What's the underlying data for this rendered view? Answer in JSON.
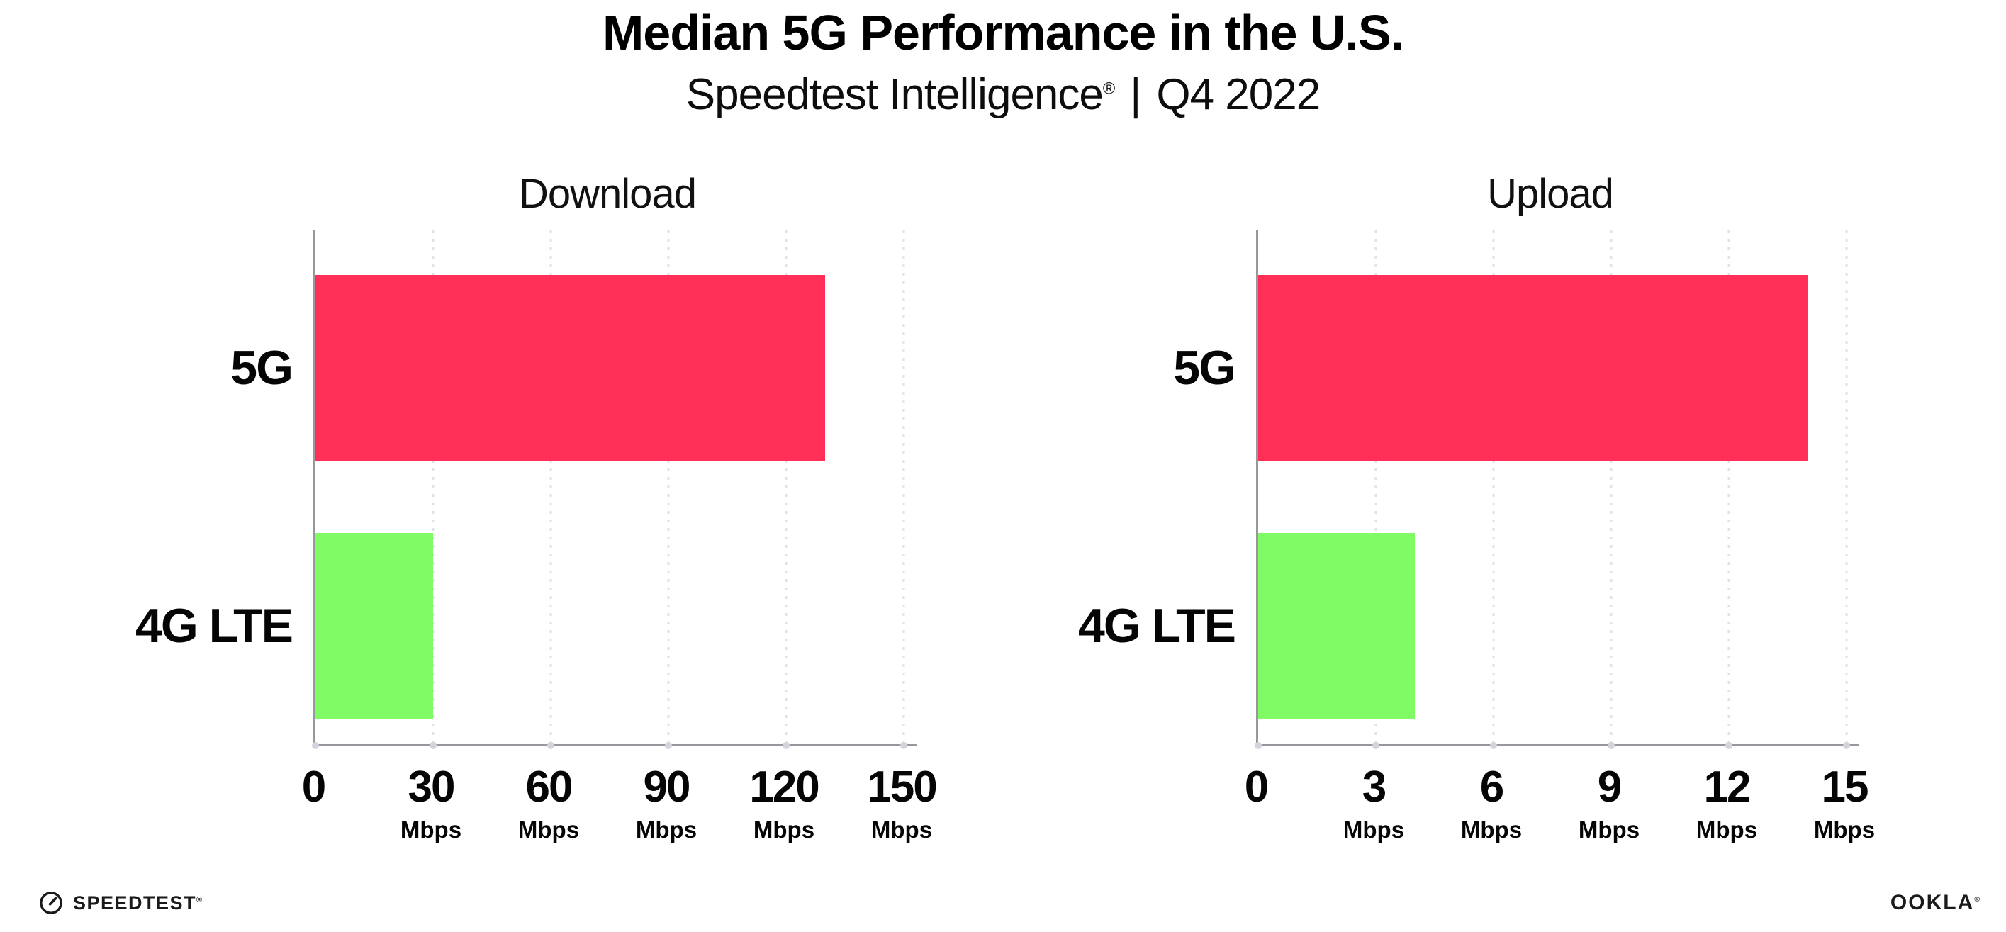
{
  "header": {
    "title": "Median 5G Performance in the U.S.",
    "subtitle": {
      "brand": "Speedtest Intelligence",
      "registered_mark": "®",
      "separator": "|",
      "period": "Q4 2022"
    }
  },
  "chart_data": {
    "type": "bar",
    "orientation": "horizontal",
    "grid": "dotted-vertical-gridlines",
    "legend": "none",
    "categories": [
      "5G",
      "4G LTE"
    ],
    "charts": [
      {
        "title": "Download",
        "unit": "Mbps",
        "xlim": [
          0,
          150
        ],
        "ticks": [
          0,
          30,
          60,
          90,
          120,
          150
        ],
        "series": [
          {
            "category": "5G",
            "value": 130,
            "color": "#FF2F57"
          },
          {
            "category": "4G LTE",
            "value": 30,
            "color": "#80FB66"
          }
        ]
      },
      {
        "title": "Upload",
        "unit": "Mbps",
        "xlim": [
          0,
          15
        ],
        "ticks": [
          0,
          3,
          6,
          9,
          12,
          15
        ],
        "series": [
          {
            "category": "5G",
            "value": 14,
            "color": "#FF2F57"
          },
          {
            "category": "4G LTE",
            "value": 4,
            "color": "#80FB66"
          }
        ]
      }
    ]
  },
  "colors": {
    "bar_5g": "#FF2F57",
    "bar_4g_lte": "#80FB66",
    "gridline": "#E1E1E9",
    "axis": "#97979D",
    "text": "#0D0D0D",
    "background": "#FFFFFF"
  },
  "footer": {
    "speedtest_logo_text": "SPEEDTEST",
    "speedtest_mark": "®",
    "ookla_logo_text": "OOKLA",
    "ookla_mark": "®"
  }
}
